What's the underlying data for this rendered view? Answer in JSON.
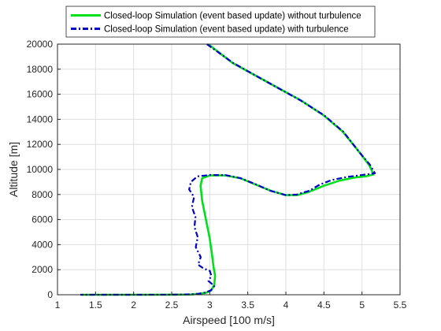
{
  "chart_data": {
    "type": "line",
    "xlabel": "Airspeed [100 m/s]",
    "ylabel": "Altitude [m]",
    "xlim": [
      1,
      5.5
    ],
    "ylim": [
      0,
      20000
    ],
    "xticks": [
      "1",
      "1.5",
      "2",
      "2.5",
      "3",
      "3.5",
      "4",
      "4.5",
      "5",
      "5.5"
    ],
    "yticks": [
      "0",
      "2000",
      "4000",
      "6000",
      "8000",
      "10000",
      "12000",
      "14000",
      "16000",
      "18000",
      "20000"
    ],
    "grid": true,
    "legend": "top-center",
    "series": [
      {
        "name": "Closed-loop Simulation (event based update) without turbulence",
        "color": "#00e01a",
        "style": "solid",
        "x": [
          2.98,
          3.3,
          3.6,
          3.9,
          4.2,
          4.5,
          4.75,
          4.95,
          5.1,
          5.15,
          5.05,
          4.9,
          4.7,
          4.5,
          4.3,
          4.15,
          4.0,
          3.8,
          3.6,
          3.4,
          3.2,
          3.0,
          2.9,
          2.88,
          2.9,
          2.95,
          3.0,
          3.03,
          3.05,
          3.07,
          3.06,
          3.02,
          2.95,
          2.85,
          2.75,
          2.5,
          2.0,
          1.5,
          1.32
        ],
        "y": [
          20000,
          18500,
          17500,
          16500,
          15500,
          14300,
          13000,
          11500,
          10300,
          9600,
          9450,
          9350,
          9100,
          8700,
          8200,
          7950,
          7950,
          8300,
          8800,
          9300,
          9530,
          9520,
          9300,
          8700,
          7500,
          6000,
          4500,
          3200,
          2200,
          1500,
          800,
          350,
          150,
          70,
          20,
          5,
          0,
          0,
          0
        ]
      },
      {
        "name": "Closed-loop Simulation (event based update) with turbulence",
        "color": "#0000c8",
        "style": "dashdot",
        "x": [
          2.97,
          3.3,
          3.6,
          3.9,
          4.2,
          4.5,
          4.75,
          4.95,
          5.1,
          5.17,
          5.0,
          4.8,
          4.6,
          4.45,
          4.3,
          4.15,
          4.0,
          3.8,
          3.6,
          3.4,
          3.2,
          3.0,
          2.85,
          2.75,
          2.72,
          2.8,
          2.76,
          2.82,
          2.79,
          2.85,
          2.82,
          2.88,
          2.85,
          2.92,
          3.0,
          3.03,
          2.98,
          3.05,
          3.02,
          2.95,
          2.85,
          2.75,
          2.5,
          2.0,
          1.5,
          1.3
        ],
        "y": [
          20000,
          18500,
          17500,
          16500,
          15500,
          14300,
          13000,
          11500,
          10400,
          9700,
          9550,
          9400,
          9150,
          8800,
          8300,
          8000,
          7950,
          8300,
          8800,
          9300,
          9550,
          9560,
          9450,
          9000,
          8400,
          7800,
          7000,
          6200,
          5400,
          4600,
          3800,
          3000,
          2400,
          2100,
          1900,
          1500,
          1100,
          700,
          350,
          180,
          80,
          30,
          5,
          0,
          0,
          0
        ]
      }
    ]
  }
}
